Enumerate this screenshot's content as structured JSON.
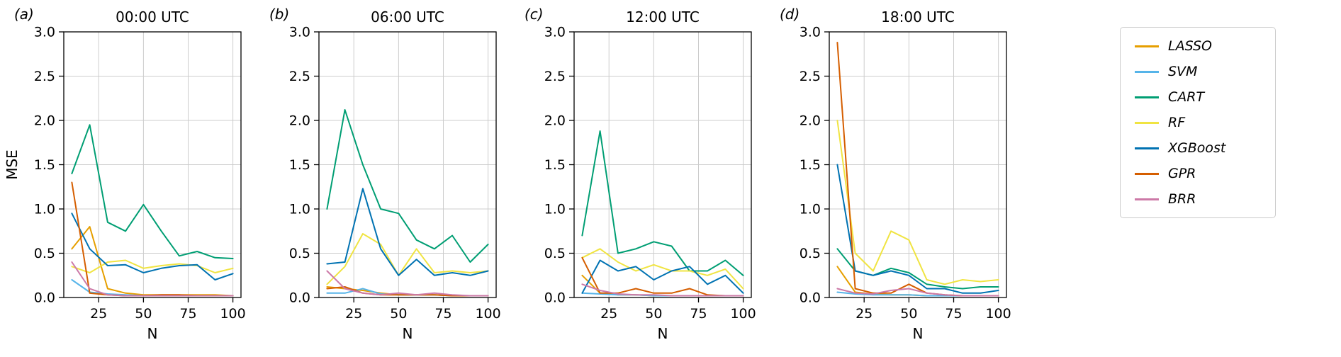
{
  "figure": {
    "background": "#ffffff",
    "grid_color": "#cccccc",
    "axis_color": "#000000"
  },
  "legend": {
    "position": "right",
    "items": [
      {
        "label": "LASSO",
        "color": "#E69F00"
      },
      {
        "label": "SVM",
        "color": "#56B4E9"
      },
      {
        "label": "CART",
        "color": "#009E73"
      },
      {
        "label": "RF",
        "color": "#F0E442"
      },
      {
        "label": "XGBoost",
        "color": "#0072B2"
      },
      {
        "label": "GPR",
        "color": "#D55E00"
      },
      {
        "label": "BRR",
        "color": "#CC79A7"
      }
    ]
  },
  "chart_data": [
    {
      "type": "line",
      "panel_label": "(a)",
      "title": "00:00 UTC",
      "xlabel": "N",
      "ylabel": "MSE",
      "grid": true,
      "x": [
        10,
        20,
        30,
        40,
        50,
        60,
        70,
        80,
        90,
        100
      ],
      "xlim": [
        5.5,
        104.5
      ],
      "ylim": [
        0,
        3.0
      ],
      "xticks": [
        25,
        50,
        75,
        100
      ],
      "yticks": [
        0,
        0.5,
        1.0,
        1.5,
        2.0,
        2.5,
        3.0
      ],
      "series": [
        {
          "name": "LASSO",
          "color": "#E69F00",
          "values": [
            0.55,
            0.8,
            0.1,
            0.05,
            0.03,
            0.03,
            0.03,
            0.03,
            0.03,
            0.02
          ]
        },
        {
          "name": "SVM",
          "color": "#56B4E9",
          "values": [
            0.2,
            0.06,
            0.04,
            0.03,
            0.02,
            0.02,
            0.02,
            0.02,
            0.02,
            0.02
          ]
        },
        {
          "name": "CART",
          "color": "#009E73",
          "values": [
            1.4,
            1.95,
            0.85,
            0.75,
            1.05,
            0.75,
            0.47,
            0.52,
            0.45,
            0.44
          ]
        },
        {
          "name": "RF",
          "color": "#F0E442",
          "values": [
            0.35,
            0.28,
            0.4,
            0.42,
            0.33,
            0.36,
            0.38,
            0.36,
            0.28,
            0.33
          ]
        },
        {
          "name": "XGBoost",
          "color": "#0072B2",
          "values": [
            0.95,
            0.55,
            0.36,
            0.37,
            0.28,
            0.33,
            0.36,
            0.37,
            0.2,
            0.27
          ]
        },
        {
          "name": "GPR",
          "color": "#D55E00",
          "values": [
            1.3,
            0.05,
            0.03,
            0.02,
            0.02,
            0.03,
            0.03,
            0.02,
            0.02,
            0.02
          ]
        },
        {
          "name": "BRR",
          "color": "#CC79A7",
          "values": [
            0.4,
            0.1,
            0.03,
            0.02,
            0.02,
            0.02,
            0.02,
            0.02,
            0.02,
            0.02
          ]
        }
      ]
    },
    {
      "type": "line",
      "panel_label": "(b)",
      "title": "06:00 UTC",
      "xlabel": "N",
      "ylabel": "",
      "grid": true,
      "x": [
        10,
        20,
        30,
        40,
        50,
        60,
        70,
        80,
        90,
        100
      ],
      "xlim": [
        5.5,
        104.5
      ],
      "ylim": [
        0,
        3.0
      ],
      "xticks": [
        25,
        50,
        75,
        100
      ],
      "yticks": [
        0,
        0.5,
        1.0,
        1.5,
        2.0,
        2.5,
        3.0
      ],
      "series": [
        {
          "name": "LASSO",
          "color": "#E69F00",
          "values": [
            0.12,
            0.1,
            0.08,
            0.05,
            0.03,
            0.03,
            0.03,
            0.02,
            0.02,
            0.02
          ]
        },
        {
          "name": "SVM",
          "color": "#56B4E9",
          "values": [
            0.05,
            0.05,
            0.1,
            0.04,
            0.03,
            0.03,
            0.03,
            0.02,
            0.02,
            0.02
          ]
        },
        {
          "name": "CART",
          "color": "#009E73",
          "values": [
            1.0,
            2.12,
            1.5,
            1.0,
            0.95,
            0.65,
            0.55,
            0.7,
            0.4,
            0.6
          ]
        },
        {
          "name": "RF",
          "color": "#F0E442",
          "values": [
            0.15,
            0.35,
            0.72,
            0.6,
            0.25,
            0.55,
            0.28,
            0.3,
            0.28,
            0.3
          ]
        },
        {
          "name": "XGBoost",
          "color": "#0072B2",
          "values": [
            0.38,
            0.4,
            1.23,
            0.55,
            0.25,
            0.43,
            0.25,
            0.28,
            0.25,
            0.3
          ]
        },
        {
          "name": "GPR",
          "color": "#D55E00",
          "values": [
            0.1,
            0.12,
            0.05,
            0.03,
            0.03,
            0.03,
            0.03,
            0.02,
            0.02,
            0.02
          ]
        },
        {
          "name": "BRR",
          "color": "#CC79A7",
          "values": [
            0.3,
            0.1,
            0.05,
            0.03,
            0.05,
            0.03,
            0.05,
            0.03,
            0.02,
            0.02
          ]
        }
      ]
    },
    {
      "type": "line",
      "panel_label": "(c)",
      "title": "12:00 UTC",
      "xlabel": "N",
      "ylabel": "",
      "grid": true,
      "x": [
        10,
        20,
        30,
        40,
        50,
        60,
        70,
        80,
        90,
        100
      ],
      "xlim": [
        5.5,
        104.5
      ],
      "ylim": [
        0,
        3.0
      ],
      "xticks": [
        25,
        50,
        75,
        100
      ],
      "yticks": [
        0,
        0.5,
        1.0,
        1.5,
        2.0,
        2.5,
        3.0
      ],
      "series": [
        {
          "name": "LASSO",
          "color": "#E69F00",
          "values": [
            0.25,
            0.05,
            0.03,
            0.03,
            0.02,
            0.02,
            0.02,
            0.02,
            0.02,
            0.02
          ]
        },
        {
          "name": "SVM",
          "color": "#56B4E9",
          "values": [
            0.05,
            0.04,
            0.03,
            0.03,
            0.02,
            0.02,
            0.02,
            0.02,
            0.02,
            0.02
          ]
        },
        {
          "name": "CART",
          "color": "#009E73",
          "values": [
            0.7,
            1.88,
            0.5,
            0.55,
            0.63,
            0.58,
            0.3,
            0.3,
            0.42,
            0.25
          ]
        },
        {
          "name": "RF",
          "color": "#F0E442",
          "values": [
            0.45,
            0.55,
            0.4,
            0.3,
            0.37,
            0.3,
            0.3,
            0.25,
            0.32,
            0.1
          ]
        },
        {
          "name": "XGBoost",
          "color": "#0072B2",
          "values": [
            0.05,
            0.42,
            0.3,
            0.35,
            0.2,
            0.3,
            0.35,
            0.15,
            0.25,
            0.05
          ]
        },
        {
          "name": "GPR",
          "color": "#D55E00",
          "values": [
            0.45,
            0.05,
            0.05,
            0.1,
            0.05,
            0.05,
            0.1,
            0.03,
            0.02,
            0.02
          ]
        },
        {
          "name": "BRR",
          "color": "#CC79A7",
          "values": [
            0.15,
            0.08,
            0.04,
            0.03,
            0.03,
            0.02,
            0.02,
            0.02,
            0.02,
            0.02
          ]
        }
      ]
    },
    {
      "type": "line",
      "panel_label": "(d)",
      "title": "18:00 UTC",
      "xlabel": "N",
      "ylabel": "",
      "grid": true,
      "x": [
        10,
        20,
        30,
        40,
        50,
        60,
        70,
        80,
        90,
        100
      ],
      "xlim": [
        5.5,
        104.5
      ],
      "ylim": [
        0,
        3.0
      ],
      "xticks": [
        25,
        50,
        75,
        100
      ],
      "yticks": [
        0,
        0.5,
        1.0,
        1.5,
        2.0,
        2.5,
        3.0
      ],
      "series": [
        {
          "name": "LASSO",
          "color": "#E69F00",
          "values": [
            0.35,
            0.06,
            0.04,
            0.03,
            0.03,
            0.02,
            0.02,
            0.02,
            0.02,
            0.02
          ]
        },
        {
          "name": "SVM",
          "color": "#56B4E9",
          "values": [
            0.06,
            0.04,
            0.03,
            0.03,
            0.03,
            0.02,
            0.02,
            0.02,
            0.02,
            0.02
          ]
        },
        {
          "name": "CART",
          "color": "#009E73",
          "values": [
            0.55,
            0.3,
            0.25,
            0.33,
            0.28,
            0.15,
            0.12,
            0.1,
            0.12,
            0.12
          ]
        },
        {
          "name": "RF",
          "color": "#F0E442",
          "values": [
            2.0,
            0.5,
            0.3,
            0.75,
            0.65,
            0.2,
            0.15,
            0.2,
            0.18,
            0.2
          ]
        },
        {
          "name": "XGBoost",
          "color": "#0072B2",
          "values": [
            1.5,
            0.3,
            0.25,
            0.3,
            0.25,
            0.1,
            0.1,
            0.05,
            0.05,
            0.08
          ]
        },
        {
          "name": "GPR",
          "color": "#D55E00",
          "values": [
            2.88,
            0.1,
            0.05,
            0.05,
            0.15,
            0.05,
            0.03,
            0.02,
            0.02,
            0.02
          ]
        },
        {
          "name": "BRR",
          "color": "#CC79A7",
          "values": [
            0.1,
            0.05,
            0.04,
            0.08,
            0.1,
            0.05,
            0.03,
            0.02,
            0.02,
            0.02
          ]
        }
      ]
    }
  ]
}
